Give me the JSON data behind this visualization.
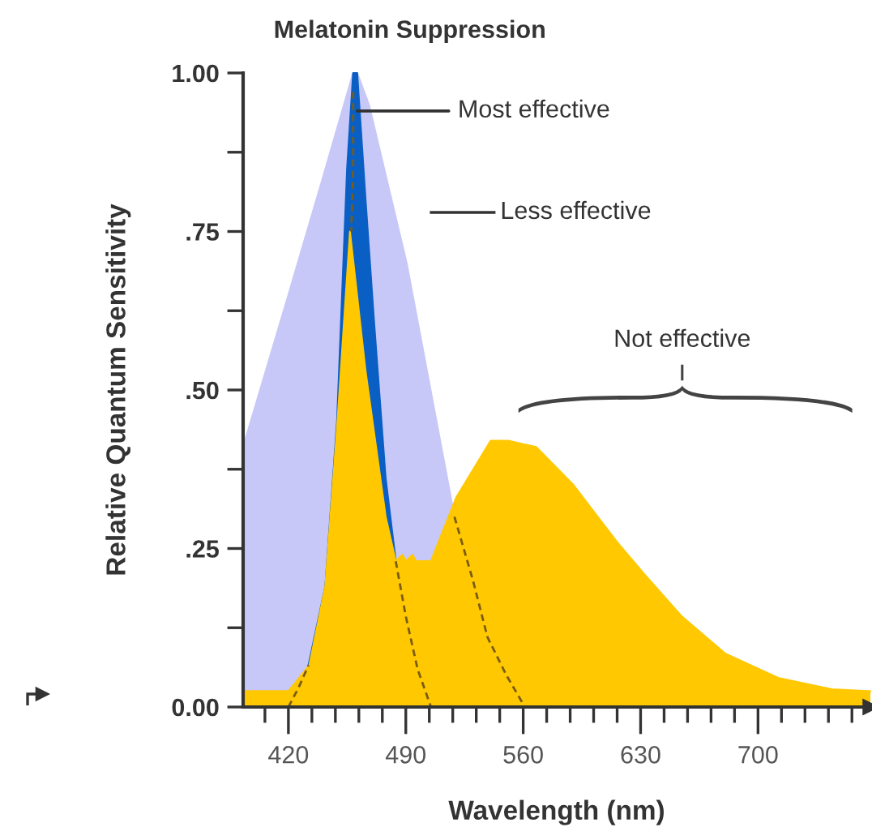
{
  "chart_data": {
    "type": "area",
    "title": "Melatonin Suppression",
    "xlabel": "Wavelength (nm)",
    "ylabel": "Relative Quantum Sensitivity",
    "xlim": [
      393,
      767
    ],
    "ylim": [
      0,
      1.0
    ],
    "xticks": [
      {
        "value": 406,
        "label": null
      },
      420,
      {
        "value": 434,
        "label": null
      },
      {
        "value": 448,
        "label": null
      },
      {
        "value": 462,
        "label": null
      },
      {
        "value": 476,
        "label": null
      },
      490,
      {
        "value": 504,
        "label": null
      },
      {
        "value": 518,
        "label": null
      },
      {
        "value": 532,
        "label": null
      },
      {
        "value": 546,
        "label": null
      },
      560,
      {
        "value": 574,
        "label": null
      },
      {
        "value": 588,
        "label": null
      },
      {
        "value": 602,
        "label": null
      },
      {
        "value": 616,
        "label": null
      },
      630,
      {
        "value": 644,
        "label": null
      },
      {
        "value": 658,
        "label": null
      },
      {
        "value": 672,
        "label": null
      },
      {
        "value": 686,
        "label": null
      },
      700,
      {
        "value": 714,
        "label": null
      },
      {
        "value": 728,
        "label": null
      },
      {
        "value": 742,
        "label": null
      },
      {
        "value": 756,
        "label": null
      }
    ],
    "yticks": [
      {
        "value": 0,
        "label": "0.00"
      },
      {
        "value": 0.125,
        "label": null
      },
      {
        "value": 0.25,
        "label": ".25"
      },
      {
        "value": 0.375,
        "label": null
      },
      {
        "value": 0.5,
        "label": ".50"
      },
      {
        "value": 0.625,
        "label": null
      },
      {
        "value": 0.75,
        "label": ".75"
      },
      {
        "value": 0.875,
        "label": null
      },
      {
        "value": 1.0,
        "label": "1.00"
      }
    ],
    "grid": false,
    "legend": false,
    "series": [
      {
        "color": "#c8c8f8",
        "x": [
          393,
          420,
          440,
          458.6,
          461,
          468,
          490.5,
          512.6,
          519
        ],
        "values": [
          0.41,
          0.65,
          0.83,
          1.0,
          1.0,
          0.95,
          0.7,
          0.39,
          0.3
        ]
      },
      {
        "color": "#0a5fc4",
        "x": [
          432,
          442,
          449,
          455,
          458.6,
          461,
          466,
          471,
          478,
          484
        ],
        "values": [
          0.066,
          0.19,
          0.45,
          0.85,
          1.0,
          1.0,
          0.8,
          0.61,
          0.36,
          0.23
        ]
      },
      {
        "color": "#ffc800",
        "x": [
          393,
          420,
          432.5,
          442,
          449,
          456.7,
          466,
          478,
          484,
          488,
          490,
          494,
          496,
          505,
          520,
          540.6,
          551,
          567.7,
          590,
          616,
          632,
          654.5,
          680.6,
          712,
          744,
          767
        ],
        "values": [
          0.025,
          0.025,
          0.066,
          0.19,
          0.44,
          0.75,
          0.53,
          0.3,
          0.23,
          0.24,
          0.23,
          0.24,
          0.23,
          0.23,
          0.33,
          0.42,
          0.42,
          0.41,
          0.35,
          0.26,
          0.21,
          0.143,
          0.084,
          0.046,
          0.028,
          0.025
        ]
      },
      {
        "type": "line",
        "color": "#7a5c10",
        "line_style": "dashed",
        "x": [
          420,
          426,
          432
        ],
        "values": [
          0,
          0.03,
          0.066
        ]
      },
      {
        "type": "line",
        "color": "#7a5c10",
        "line_style": "dashed",
        "x": [
          458.6,
          458.6,
          457.5
        ],
        "values": [
          0.97,
          0.85,
          0.75
        ]
      },
      {
        "type": "line",
        "color": "#7a5c10",
        "line_style": "dashed",
        "x": [
          484,
          490,
          497,
          505
        ],
        "values": [
          0.23,
          0.143,
          0.06,
          0
        ]
      },
      {
        "type": "line",
        "color": "#7a5c10",
        "line_style": "dashed",
        "x": [
          519,
          530,
          538.7,
          550,
          561
        ],
        "values": [
          0.3,
          0.2,
          0.11,
          0.05,
          0
        ]
      }
    ],
    "annotations": [
      {
        "text": "Most effective",
        "x": 461,
        "y": 0.94
      },
      "Less effective",
      "Not effective"
    ]
  }
}
